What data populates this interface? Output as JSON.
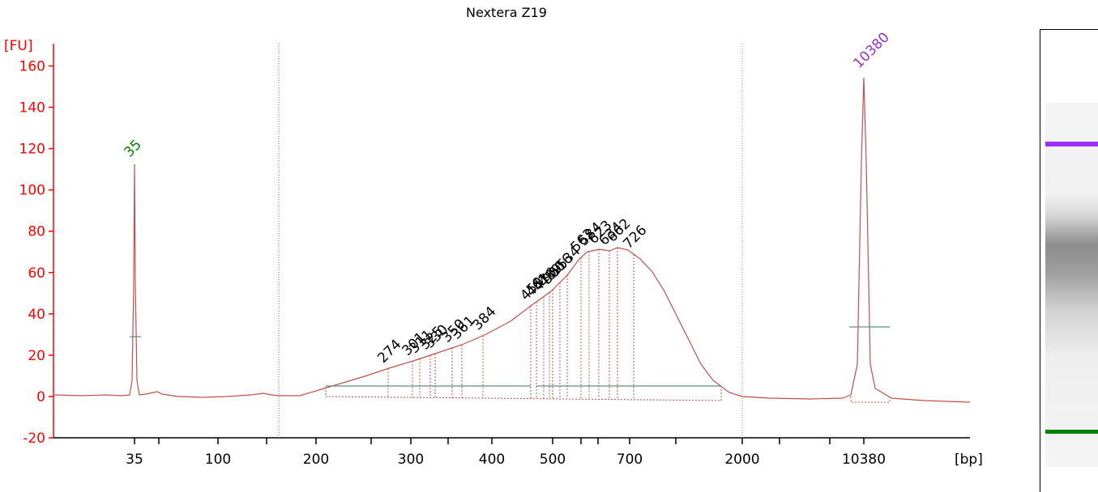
{
  "chart_data": {
    "type": "line",
    "title": "Nextera Z19",
    "ylabel": "[FU]",
    "xlabel": "[bp]",
    "ylim": [
      -20,
      170
    ],
    "yticks": [
      -20,
      0,
      20,
      40,
      60,
      80,
      100,
      120,
      140,
      160
    ],
    "x_tick_labels": [
      "35",
      "100",
      "200",
      "300",
      "400",
      "500",
      "700",
      "2000",
      "10380"
    ],
    "markers": [
      {
        "label": "35",
        "value": 114,
        "color": "#008000"
      },
      {
        "label": "10380",
        "value": 157,
        "color": "#9932cc"
      }
    ],
    "peak_labels": [
      "274",
      "301",
      "311",
      "325",
      "330",
      "350",
      "361",
      "384",
      "459",
      "461",
      "476",
      "489",
      "500",
      "516",
      "534",
      "563",
      "584",
      "623",
      "634",
      "662",
      "726"
    ],
    "series": [
      {
        "x": [
          "35",
          "100",
          "200",
          "274",
          "300",
          "350",
          "384",
          "459",
          "500",
          "560",
          "623",
          "662",
          "726",
          "2000",
          "10380"
        ],
        "values": [
          114,
          -1,
          1,
          12,
          16,
          25,
          30,
          46,
          55,
          70,
          71,
          72,
          69,
          0,
          157
        ]
      }
    ],
    "colors": {
      "trace": "#c0504d",
      "axis": "#ff0000",
      "lower": "#008000",
      "upper": "#9932cc",
      "baseline": "#5f8f7f"
    }
  },
  "gel": {
    "upper_marker_color": "#9b30ff",
    "lower_marker_color": "#008000"
  }
}
